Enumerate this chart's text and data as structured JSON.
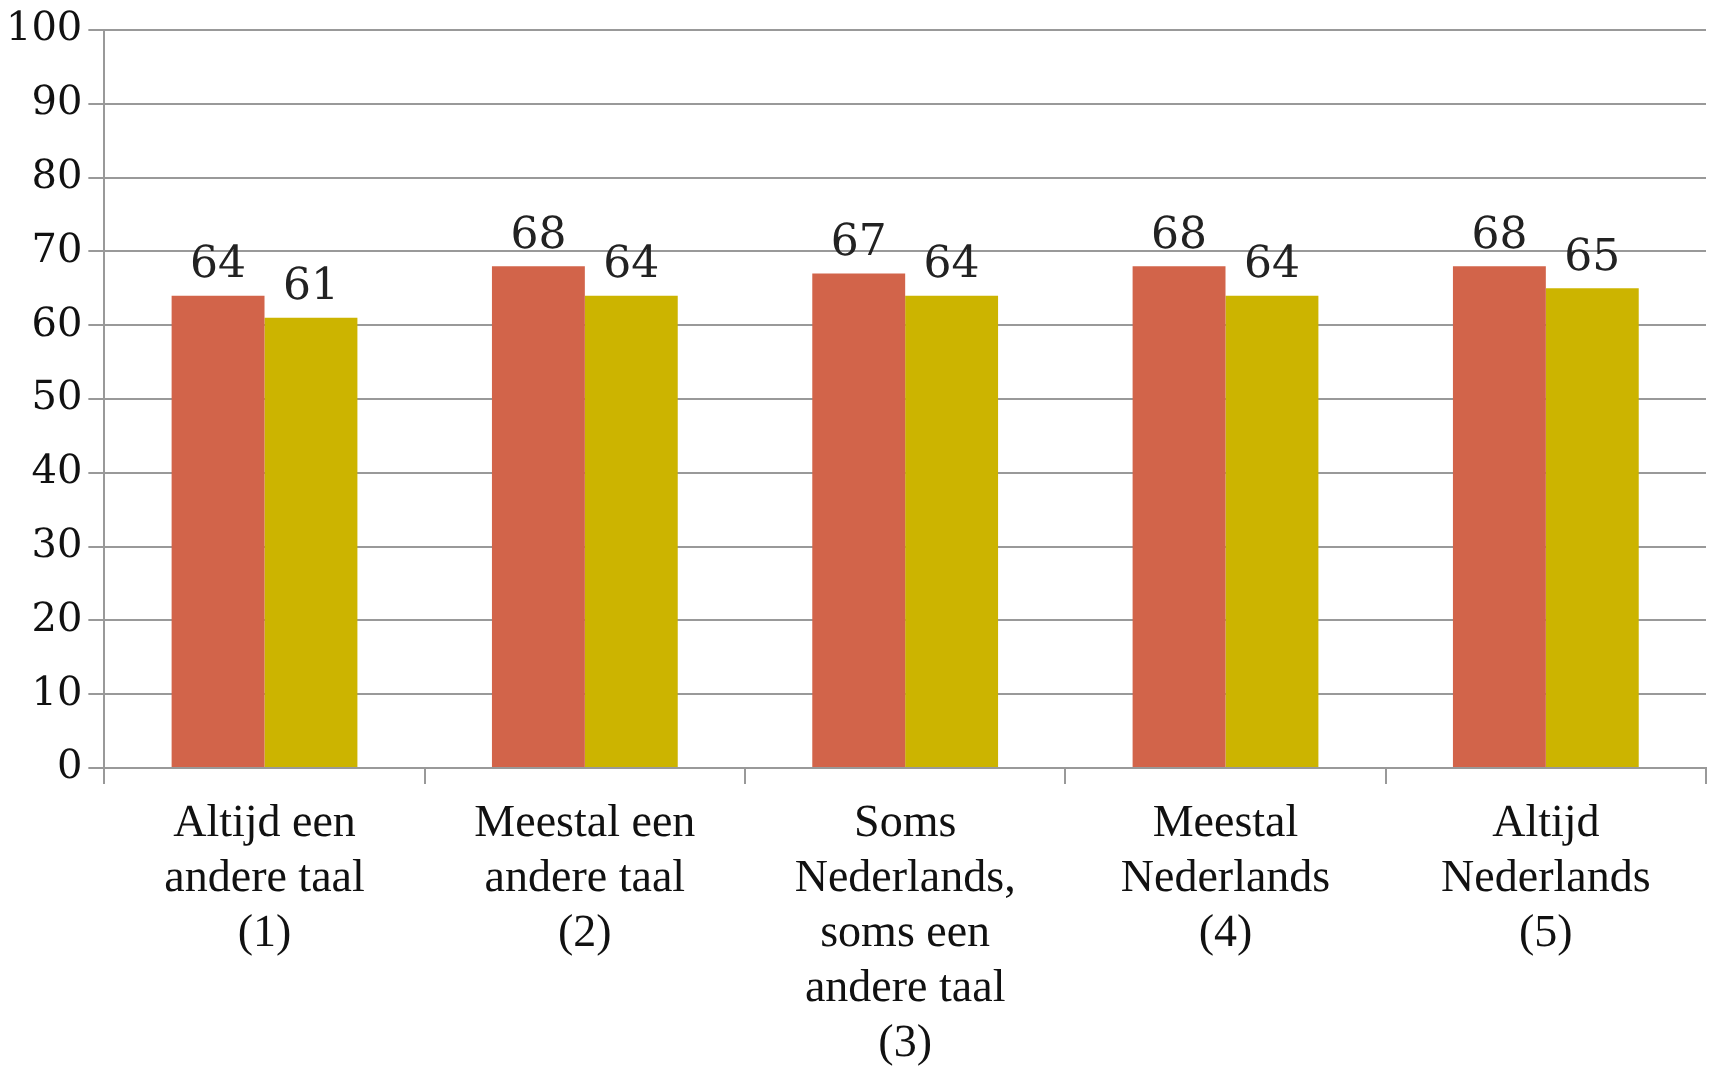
{
  "chart_data": {
    "type": "bar",
    "categories": [
      "Altijd een andere taal (1)",
      "Meestal een andere taal (2)",
      "Soms Nederlands, soms een andere taal (3)",
      "Meestal Nederlands (4)",
      "Altijd Nederlands (5)"
    ],
    "series": [
      {
        "color": "#d2644a",
        "values": [
          64,
          68,
          67,
          68,
          68
        ]
      },
      {
        "color": "#ccb400",
        "values": [
          61,
          64,
          64,
          64,
          65
        ]
      }
    ],
    "ylim": [
      0,
      100
    ],
    "yticks": [
      0,
      10,
      20,
      30,
      40,
      50,
      60,
      70,
      80,
      90,
      100
    ],
    "grid": "y",
    "data_labels": true,
    "legend": false
  }
}
